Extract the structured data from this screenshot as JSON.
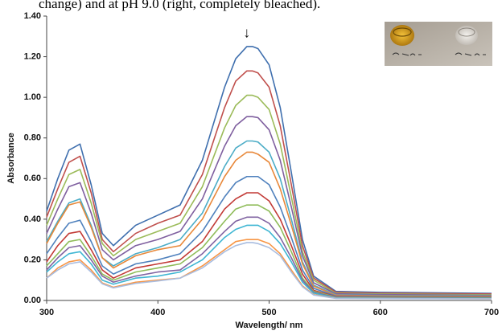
{
  "chart_data": {
    "type": "line",
    "caption": "change) and at pH 9.0 (right, completely bleached).",
    "annotation": "↓",
    "x_label": "Wavelength/ nm",
    "y_label": "Absorbance",
    "xlim": [
      300,
      700
    ],
    "xticks": [
      300,
      400,
      500,
      600,
      700
    ],
    "ylim": [
      0,
      1.4
    ],
    "yticks": [
      {
        "value": 0,
        "label": "0.00"
      },
      {
        "value": 0.2,
        "label": "0.20"
      },
      {
        "value": 0.4,
        "label": "0.40"
      },
      {
        "value": 0.6,
        "label": "0.60"
      },
      {
        "value": 0.8,
        "label": "0.80"
      },
      {
        "value": 1.0,
        "label": "1.00"
      },
      {
        "value": 1.2,
        "label": "1.20"
      },
      {
        "value": 1.4,
        "label": "1.40"
      }
    ],
    "x": [
      300,
      310,
      320,
      330,
      340,
      350,
      360,
      380,
      400,
      420,
      440,
      460,
      470,
      480,
      485,
      490,
      500,
      510,
      520,
      530,
      540,
      560,
      600,
      700
    ],
    "series": [
      {
        "color": "#3f6fae",
        "values": [
          0.44,
          0.6,
          0.74,
          0.77,
          0.57,
          0.33,
          0.27,
          0.37,
          0.42,
          0.47,
          0.69,
          1.05,
          1.19,
          1.25,
          1.25,
          1.24,
          1.16,
          0.95,
          0.63,
          0.3,
          0.12,
          0.045,
          0.04,
          0.035
        ]
      },
      {
        "color": "#c0504d",
        "values": [
          0.41,
          0.55,
          0.68,
          0.71,
          0.53,
          0.3,
          0.24,
          0.33,
          0.38,
          0.42,
          0.62,
          0.95,
          1.08,
          1.13,
          1.13,
          1.12,
          1.05,
          0.86,
          0.57,
          0.27,
          0.11,
          0.041,
          0.036,
          0.032
        ]
      },
      {
        "color": "#9bbb59",
        "values": [
          0.37,
          0.5,
          0.62,
          0.645,
          0.48,
          0.28,
          0.22,
          0.3,
          0.34,
          0.38,
          0.56,
          0.85,
          0.96,
          1.01,
          1.01,
          1.0,
          0.94,
          0.77,
          0.51,
          0.24,
          0.1,
          0.036,
          0.032,
          0.028
        ]
      },
      {
        "color": "#7f5f9f",
        "values": [
          0.33,
          0.45,
          0.56,
          0.58,
          0.43,
          0.25,
          0.2,
          0.27,
          0.3,
          0.34,
          0.5,
          0.76,
          0.86,
          0.905,
          0.905,
          0.9,
          0.84,
          0.69,
          0.46,
          0.22,
          0.087,
          0.033,
          0.029,
          0.025
        ]
      },
      {
        "color": "#4bacc6",
        "values": [
          0.29,
          0.39,
          0.48,
          0.5,
          0.37,
          0.21,
          0.17,
          0.23,
          0.26,
          0.3,
          0.43,
          0.66,
          0.75,
          0.785,
          0.785,
          0.78,
          0.73,
          0.6,
          0.4,
          0.19,
          0.075,
          0.028,
          0.025,
          0.022
        ]
      },
      {
        "color": "#e8883a",
        "values": [
          0.28,
          0.38,
          0.47,
          0.485,
          0.36,
          0.21,
          0.16,
          0.22,
          0.25,
          0.27,
          0.4,
          0.61,
          0.69,
          0.73,
          0.73,
          0.72,
          0.68,
          0.55,
          0.37,
          0.18,
          0.07,
          0.026,
          0.023,
          0.02
        ]
      },
      {
        "color": "#4f81bd",
        "values": [
          0.23,
          0.31,
          0.38,
          0.395,
          0.29,
          0.17,
          0.13,
          0.18,
          0.2,
          0.23,
          0.34,
          0.51,
          0.58,
          0.61,
          0.61,
          0.61,
          0.57,
          0.46,
          0.31,
          0.15,
          0.06,
          0.022,
          0.02,
          0.017
        ]
      },
      {
        "color": "#c23a36",
        "values": [
          0.19,
          0.27,
          0.33,
          0.34,
          0.25,
          0.15,
          0.11,
          0.16,
          0.18,
          0.2,
          0.29,
          0.45,
          0.5,
          0.53,
          0.53,
          0.53,
          0.49,
          0.4,
          0.27,
          0.13,
          0.05,
          0.019,
          0.017,
          0.015
        ]
      },
      {
        "color": "#8fbc5a",
        "values": [
          0.17,
          0.23,
          0.29,
          0.3,
          0.22,
          0.13,
          0.1,
          0.14,
          0.16,
          0.18,
          0.26,
          0.39,
          0.45,
          0.47,
          0.47,
          0.47,
          0.44,
          0.36,
          0.24,
          0.11,
          0.045,
          0.017,
          0.015,
          0.013
        ]
      },
      {
        "color": "#8064a2",
        "values": [
          0.15,
          0.21,
          0.26,
          0.27,
          0.2,
          0.12,
          0.09,
          0.12,
          0.14,
          0.15,
          0.23,
          0.34,
          0.39,
          0.41,
          0.41,
          0.41,
          0.38,
          0.31,
          0.21,
          0.1,
          0.04,
          0.015,
          0.013,
          0.011
        ]
      },
      {
        "color": "#3fb6d3",
        "values": [
          0.14,
          0.19,
          0.23,
          0.24,
          0.18,
          0.1,
          0.08,
          0.11,
          0.12,
          0.14,
          0.2,
          0.31,
          0.35,
          0.37,
          0.37,
          0.37,
          0.34,
          0.28,
          0.19,
          0.09,
          0.036,
          0.013,
          0.012,
          0.01
        ]
      },
      {
        "color": "#f79646",
        "values": [
          0.11,
          0.16,
          0.19,
          0.2,
          0.15,
          0.086,
          0.065,
          0.09,
          0.1,
          0.11,
          0.17,
          0.25,
          0.29,
          0.3,
          0.3,
          0.3,
          0.28,
          0.23,
          0.15,
          0.072,
          0.029,
          0.011,
          0.01,
          0.008
        ]
      },
      {
        "color": "#a9bde0",
        "values": [
          0.11,
          0.15,
          0.18,
          0.19,
          0.14,
          0.082,
          0.062,
          0.084,
          0.096,
          0.11,
          0.16,
          0.24,
          0.27,
          0.285,
          0.285,
          0.28,
          0.26,
          0.22,
          0.14,
          0.068,
          0.027,
          0.01,
          0.009,
          0.008
        ]
      }
    ]
  }
}
